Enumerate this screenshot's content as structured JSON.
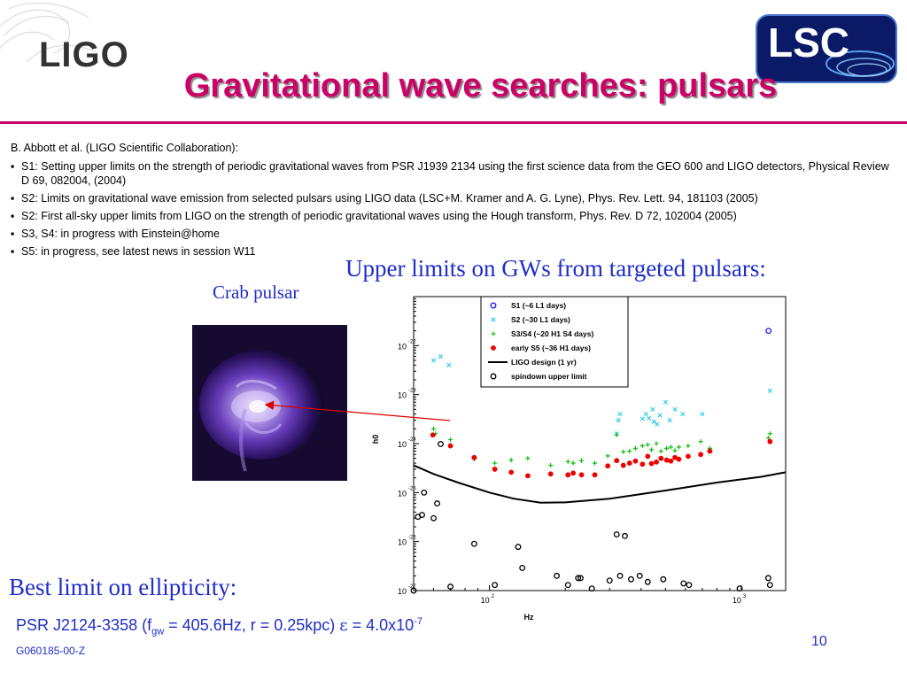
{
  "header": {
    "logo_text": "LIGO",
    "lsc_logo_text": "LSC",
    "title": "Gravitational wave searches: pulsars"
  },
  "references": {
    "intro": "B. Abbott et al. (LIGO Scientific Collaboration):",
    "items": [
      "S1: Setting upper limits on the strength of periodic gravitational waves from PSR J1939 2134 using the first science data from the GEO 600 and LIGO detectors, Physical Review D 69, 082004, (2004)",
      "S2: Limits on gravitational wave emission from selected pulsars using LIGO data (LSC+M. Kramer and A. G. Lyne), Phys. Rev. Lett. 94, 181103 (2005)",
      "S2: First all-sky upper limits from LIGO on the strength of periodic gravitational waves using the Hough transform, Phys. Rev. D 72, 102004 (2005)",
      "S3, S4: in progress with Einstein@home",
      "S5: in progress, see latest news in session W11"
    ]
  },
  "upper_limits_heading": "Upper limits on GWs from targeted pulsars:",
  "crab_label": "Crab pulsar",
  "best_limit_heading": "Best limit on ellipticity:",
  "result": {
    "prefix": "PSR J2124-3358 (f",
    "sub": "gw",
    "middle": " = 405.6Hz, r = 0.25kpc) ",
    "epsilon": "ε",
    "equals": " = 4.0x10",
    "exponent": "-7"
  },
  "footer": {
    "page_number": "10",
    "doc_id": "G060185-00-Z"
  },
  "colors": {
    "title": "#cc0066",
    "body_blue": "#1f2ec8",
    "s1": "#1a1aff",
    "s2": "#22ccee",
    "s3s4": "#00bb00",
    "s5": "#ee0000"
  },
  "chart_data": {
    "type": "scatter",
    "xlabel": "Hz",
    "ylabel": "h0",
    "x_scale": "log",
    "y_scale": "log",
    "xlim": [
      50,
      1500
    ],
    "ylim": [
      1e-27,
      1e-21
    ],
    "x_ticks": [
      "10^2",
      "10^3"
    ],
    "y_ticks": [
      "10^-27",
      "10^-26",
      "10^-25",
      "10^-24",
      "10^-23",
      "10^-22"
    ],
    "legend_position": "top-right",
    "series": [
      {
        "name": "S1 (~6 L1 days)",
        "marker": "circle-open",
        "color": "#1a1aff",
        "points": [
          [
            1283,
            2e-22
          ]
        ]
      },
      {
        "name": "S2 (~30 L1 days)",
        "marker": "x",
        "color": "#22ccee",
        "points": [
          [
            60,
            5e-23
          ],
          [
            64,
            6e-23
          ],
          [
            69,
            4e-23
          ],
          [
            325,
            3e-24
          ],
          [
            330,
            4e-24
          ],
          [
            320,
            1.6e-24
          ],
          [
            405,
            3.2e-24
          ],
          [
            418,
            4e-24
          ],
          [
            430,
            3.3e-24
          ],
          [
            445,
            5e-24
          ],
          [
            450,
            2.8e-24
          ],
          [
            463,
            2.5e-24
          ],
          [
            475,
            3.8e-24
          ],
          [
            500,
            7e-24
          ],
          [
            520,
            3e-24
          ],
          [
            545,
            5e-24
          ],
          [
            585,
            4e-24
          ],
          [
            700,
            4e-24
          ],
          [
            1300,
            1.2e-23
          ]
        ]
      },
      {
        "name": "S3/S4 (~20 H1 S4 days)",
        "marker": "plus",
        "color": "#00bb00",
        "points": [
          [
            60,
            2e-24
          ],
          [
            61,
            1.6e-24
          ],
          [
            70,
            1.2e-24
          ],
          [
            87,
            4.8e-25
          ],
          [
            105,
            4e-25
          ],
          [
            122,
            4.6e-25
          ],
          [
            142,
            5e-25
          ],
          [
            175,
            3.6e-25
          ],
          [
            205,
            4.3e-25
          ],
          [
            215,
            4e-25
          ],
          [
            232,
            4.5e-25
          ],
          [
            262,
            4e-25
          ],
          [
            295,
            5.6e-25
          ],
          [
            320,
            1.5e-24
          ],
          [
            340,
            6.8e-25
          ],
          [
            360,
            7e-25
          ],
          [
            380,
            8e-25
          ],
          [
            405,
            9e-25
          ],
          [
            425,
            9.5e-25
          ],
          [
            440,
            7.5e-25
          ],
          [
            460,
            1e-24
          ],
          [
            480,
            7e-25
          ],
          [
            505,
            8e-25
          ],
          [
            525,
            8.5e-25
          ],
          [
            545,
            7.2e-25
          ],
          [
            565,
            8.5e-25
          ],
          [
            615,
            9e-25
          ],
          [
            690,
            1.1e-24
          ],
          [
            750,
            8e-25
          ],
          [
            1280,
            1.3e-24
          ],
          [
            1300,
            1.6e-24
          ]
        ]
      },
      {
        "name": "early S5 (~36 H1 days)",
        "marker": "dot",
        "color": "#ee0000",
        "points": [
          [
            59.6,
            1.5e-24
          ],
          [
            70,
            9e-25
          ],
          [
            87,
            5.2e-25
          ],
          [
            105,
            3e-25
          ],
          [
            122,
            2.6e-25
          ],
          [
            142,
            2.2e-25
          ],
          [
            175,
            2.4e-25
          ],
          [
            205,
            2.3e-25
          ],
          [
            215,
            2.5e-25
          ],
          [
            232,
            2.3e-25
          ],
          [
            262,
            2.3e-25
          ],
          [
            295,
            3.5e-25
          ],
          [
            320,
            4.5e-25
          ],
          [
            340,
            3.6e-25
          ],
          [
            360,
            4e-25
          ],
          [
            380,
            4.4e-25
          ],
          [
            405,
            3.8e-25
          ],
          [
            425,
            5.5e-25
          ],
          [
            440,
            3.9e-25
          ],
          [
            460,
            4.2e-25
          ],
          [
            480,
            5e-25
          ],
          [
            505,
            4.6e-25
          ],
          [
            525,
            4.4e-25
          ],
          [
            545,
            5.2e-25
          ],
          [
            565,
            4.8e-25
          ],
          [
            615,
            5.5e-25
          ],
          [
            690,
            6e-25
          ],
          [
            750,
            7e-25
          ],
          [
            1300,
            1.1e-24
          ]
        ]
      },
      {
        "name": "LIGO design (1 yr)",
        "marker": "line",
        "color": "#000000",
        "points": [
          [
            50,
            3.6e-25
          ],
          [
            60,
            2.4e-25
          ],
          [
            75,
            1.6e-25
          ],
          [
            100,
            1e-25
          ],
          [
            125,
            7.5e-26
          ],
          [
            160,
            6.2e-26
          ],
          [
            200,
            6.3e-26
          ],
          [
            300,
            7.5e-26
          ],
          [
            500,
            1.1e-25
          ],
          [
            800,
            1.6e-25
          ],
          [
            1200,
            2.1e-25
          ],
          [
            1500,
            2.6e-25
          ]
        ]
      },
      {
        "name": "spindown upper limit",
        "marker": "circle-open",
        "color": "#000000",
        "points": [
          [
            50,
            1e-27
          ],
          [
            52,
            3.2e-26
          ],
          [
            54,
            3.5e-26
          ],
          [
            55,
            1e-25
          ],
          [
            60,
            3e-26
          ],
          [
            62,
            6e-26
          ],
          [
            64,
            9.8e-25
          ],
          [
            70,
            1.2e-27
          ],
          [
            87,
            9e-27
          ],
          [
            105,
            1.3e-27
          ],
          [
            130,
            7.8e-27
          ],
          [
            135,
            2.9e-27
          ],
          [
            185,
            2e-27
          ],
          [
            205,
            1.3e-27
          ],
          [
            225,
            1.8e-27
          ],
          [
            230,
            1.8e-27
          ],
          [
            255,
            1.1e-27
          ],
          [
            300,
            1.6e-27
          ],
          [
            320,
            1.4e-26
          ],
          [
            345,
            1.3e-26
          ],
          [
            330,
            2e-27
          ],
          [
            365,
            1.7e-27
          ],
          [
            395,
            2e-27
          ],
          [
            425,
            1.5e-27
          ],
          [
            490,
            1.7e-27
          ],
          [
            590,
            1.4e-27
          ],
          [
            620,
            1.3e-27
          ],
          [
            985,
            1.1e-27
          ],
          [
            1280,
            1.8e-27
          ],
          [
            1300,
            1.3e-27
          ]
        ]
      }
    ]
  }
}
